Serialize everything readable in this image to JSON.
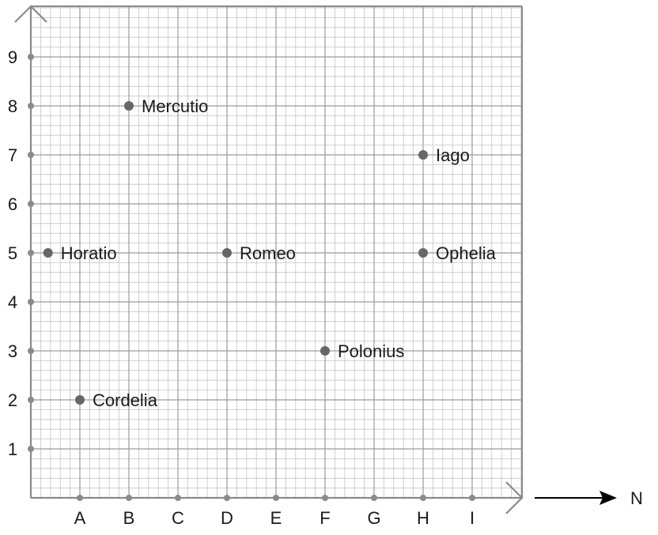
{
  "chart_data": {
    "type": "scatter",
    "title": "",
    "x_categories": [
      "A",
      "B",
      "C",
      "D",
      "E",
      "F",
      "G",
      "H",
      "I"
    ],
    "y_ticks": [
      1,
      2,
      3,
      4,
      5,
      6,
      7,
      8,
      9
    ],
    "xlim": [
      0,
      10
    ],
    "ylim": [
      0,
      10
    ],
    "grid": true,
    "minor_grid_per_unit": 5,
    "direction_label": "N",
    "points": [
      {
        "label": "Mercutio",
        "x": 2,
        "y": 8
      },
      {
        "label": "Iago",
        "x": 8,
        "y": 7
      },
      {
        "label": "Horatio",
        "x": 0.35,
        "y": 5
      },
      {
        "label": "Romeo",
        "x": 4,
        "y": 5
      },
      {
        "label": "Ophelia",
        "x": 8,
        "y": 5
      },
      {
        "label": "Polonius",
        "x": 6,
        "y": 3
      },
      {
        "label": "Cordelia",
        "x": 1,
        "y": 2
      }
    ],
    "colors": {
      "point": "#666666",
      "axis": "#8a8a8a",
      "grid_major": "#9a9a9a",
      "grid_minor": "#c4c4c4",
      "text": "#1a1a1a"
    }
  }
}
